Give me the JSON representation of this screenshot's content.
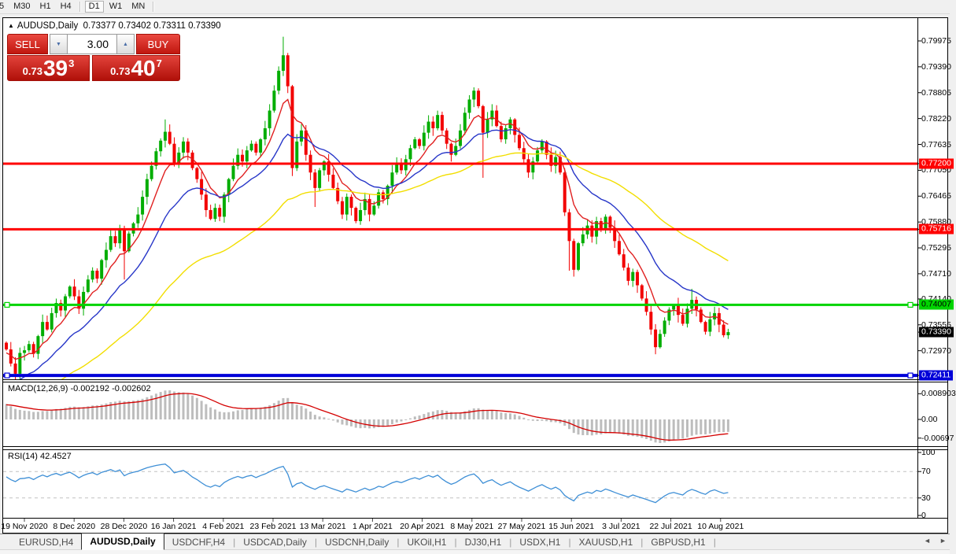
{
  "toolbar": {
    "timeframes": [
      "5",
      "M30",
      "H1",
      "H4",
      "D1",
      "W1",
      "MN"
    ],
    "active": "D1"
  },
  "chart_header": {
    "collapse_icon": "▲",
    "symbol_period": "AUDUSD,Daily",
    "ohlc": "0.73377 0.73402 0.73311 0.73390"
  },
  "trade_panel": {
    "sell_label": "SELL",
    "buy_label": "BUY",
    "volume": "3.00",
    "sell_price": {
      "small": "0.73",
      "big": "39",
      "sup": "3"
    },
    "buy_price": {
      "small": "0.73",
      "big": "40",
      "sup": "7"
    }
  },
  "price_axis": {
    "labels": [
      "0.79975",
      "0.79390",
      "0.78805",
      "0.78220",
      "0.77635",
      "0.77050",
      "0.76465",
      "0.75880",
      "0.75295",
      "0.74710",
      "0.74140",
      "0.73555",
      "0.72970"
    ],
    "badges": [
      {
        "text": "0.77200",
        "price": 0.772,
        "bg": "#ff0000",
        "fg": "#ffffff"
      },
      {
        "text": "0.75716",
        "price": 0.75716,
        "bg": "#ff0000",
        "fg": "#ffffff"
      },
      {
        "text": "0.74007",
        "price": 0.74007,
        "bg": "#00d400",
        "fg": "#000000"
      },
      {
        "text": "0.73390",
        "price": 0.7339,
        "bg": "#000000",
        "fg": "#ffffff"
      },
      {
        "text": "0.72411",
        "price": 0.72411,
        "bg": "#0000d8",
        "fg": "#ffffff"
      }
    ]
  },
  "macd_panel": {
    "label": "MACD(12,26,9) -0.002192 -0.002602",
    "axis_labels": [
      "0.008903",
      "0.00",
      "-0.00697"
    ],
    "axis_values": [
      0.008903,
      0,
      -0.00697
    ]
  },
  "rsi_panel": {
    "label": "RSI(14) 42.4527",
    "axis_labels": [
      "100",
      "70",
      "30",
      "0"
    ],
    "axis_values": [
      100,
      70,
      30,
      0
    ],
    "levels": [
      70,
      30
    ]
  },
  "date_axis": [
    "19 Nov 2020",
    "8 Dec 2020",
    "28 Dec 2020",
    "16 Jan 2021",
    "4 Feb 2021",
    "23 Feb 2021",
    "13 Mar 2021",
    "1 Apr 2021",
    "20 Apr 2021",
    "8 May 2021",
    "27 May 2021",
    "15 Jun 2021",
    "3 Jul 2021",
    "22 Jul 2021",
    "10 Aug 2021"
  ],
  "tabs": {
    "items": [
      "EURUSD,H4",
      "AUDUSD,Daily",
      "USDCHF,H4",
      "USDCAD,Daily",
      "USDCNH,Daily",
      "UKOil,H1",
      "DJ30,H1",
      "USDX,H1",
      "XAUUSD,H1",
      "GBPUSD,H1"
    ],
    "active": "AUDUSD,Daily",
    "scroll_left_icon": "◄",
    "scroll_right_icon": "►"
  },
  "colors": {
    "candle_up": "#00ad00",
    "candle_down": "#f20000",
    "line_red": "#ff0000",
    "line_green": "#00d400",
    "line_blue": "#0000d8",
    "axis_line": "#000000",
    "rsi_level_dash": "#c0c0c0"
  },
  "chart_data": {
    "type": "candlestick",
    "symbol": "AUDUSD",
    "timeframe": "Daily",
    "current_ohlc": {
      "open": 0.73377,
      "high": 0.73402,
      "low": 0.73311,
      "close": 0.7339
    },
    "bid": 0.7339,
    "ask": 0.73407,
    "price_range": [
      0.7233,
      0.8035
    ],
    "open0": 0.7315,
    "closes": [
      0.73,
      0.7268,
      0.7245,
      0.7292,
      0.7298,
      0.7312,
      0.729,
      0.733,
      0.7362,
      0.7345,
      0.7382,
      0.7405,
      0.7388,
      0.742,
      0.7442,
      0.742,
      0.7392,
      0.743,
      0.7458,
      0.7478,
      0.746,
      0.7502,
      0.7525,
      0.7556,
      0.754,
      0.7572,
      0.7522,
      0.7562,
      0.7585,
      0.7605,
      0.7645,
      0.7685,
      0.7715,
      0.7748,
      0.7772,
      0.7792,
      0.7765,
      0.772,
      0.7745,
      0.777,
      0.7745,
      0.771,
      0.7685,
      0.765,
      0.7615,
      0.7595,
      0.762,
      0.76,
      0.765,
      0.7685,
      0.7715,
      0.774,
      0.7725,
      0.775,
      0.7765,
      0.7745,
      0.7775,
      0.78,
      0.784,
      0.7885,
      0.793,
      0.7965,
      0.7895,
      0.771,
      0.777,
      0.7795,
      0.774,
      0.77,
      0.7665,
      0.7705,
      0.7725,
      0.7695,
      0.7665,
      0.7635,
      0.7605,
      0.7645,
      0.762,
      0.759,
      0.7615,
      0.764,
      0.7605,
      0.7625,
      0.7655,
      0.764,
      0.767,
      0.77,
      0.772,
      0.7705,
      0.773,
      0.7755,
      0.7775,
      0.776,
      0.779,
      0.7815,
      0.78,
      0.783,
      0.7795,
      0.7765,
      0.774,
      0.776,
      0.7795,
      0.7835,
      0.7865,
      0.7885,
      0.785,
      0.779,
      0.782,
      0.784,
      0.7805,
      0.7775,
      0.78,
      0.782,
      0.7785,
      0.7755,
      0.773,
      0.77,
      0.7725,
      0.775,
      0.777,
      0.774,
      0.7715,
      0.7735,
      0.77,
      0.761,
      0.7545,
      0.748,
      0.754,
      0.756,
      0.758,
      0.7555,
      0.759,
      0.757,
      0.76,
      0.7575,
      0.7545,
      0.7515,
      0.7485,
      0.7455,
      0.7475,
      0.7445,
      0.7415,
      0.7385,
      0.7345,
      0.7305,
      0.7335,
      0.7365,
      0.739,
      0.74,
      0.7378,
      0.7358,
      0.7392,
      0.7412,
      0.739,
      0.7362,
      0.734,
      0.7368,
      0.7382,
      0.7356,
      0.7332,
      0.7339
    ],
    "spikes": {
      "2": {
        "low": 0.7222
      },
      "26": {
        "low": 0.7458
      },
      "35": {
        "high": 0.782
      },
      "61": {
        "high": 0.8007
      },
      "63": {
        "low": 0.7692
      },
      "68": {
        "low": 0.7622
      },
      "105": {
        "low": 0.7688
      },
      "124": {
        "low": 0.7478
      },
      "143": {
        "low": 0.7289
      },
      "151": {
        "high": 0.7437
      }
    },
    "h_lines": [
      {
        "price": 0.772,
        "label": "0.77200",
        "color": "#ff0000",
        "width": 3,
        "handles": false
      },
      {
        "price": 0.75716,
        "label": "0.75716",
        "color": "#ff0000",
        "width": 3,
        "handles": false
      },
      {
        "price": 0.74007,
        "label": "0.74007",
        "color": "#00d400",
        "width": 3,
        "handles": true
      },
      {
        "price": 0.72411,
        "label": "0.72411",
        "color": "#0000d8",
        "width": 4,
        "handles": true
      }
    ],
    "moving_averages": [
      {
        "type": "ema",
        "period": 8,
        "color": "#e02020",
        "seed": 0.729
      },
      {
        "type": "ema",
        "period": 20,
        "color": "#2736c8",
        "seed": 0.721
      },
      {
        "type": "ema",
        "period": 55,
        "color": "#f2de00",
        "seed": 0.717
      }
    ],
    "macd": {
      "fast": 12,
      "slow": 26,
      "signal": 9,
      "current": -0.002192,
      "current_signal": -0.002602,
      "hist_color": "#bdbdbd",
      "signal_color": "#d40000",
      "axis_max": 0.008903,
      "axis_min": -0.00697,
      "seed_fast": 0.7325,
      "seed_slow": 0.7265,
      "seed_signal": 0.005
    },
    "rsi": {
      "period": 14,
      "current": 42.4527,
      "color": "#3e8fd6",
      "seed": 62,
      "seed_gain": 0.0021,
      "seed_loss": 0.0013
    }
  }
}
